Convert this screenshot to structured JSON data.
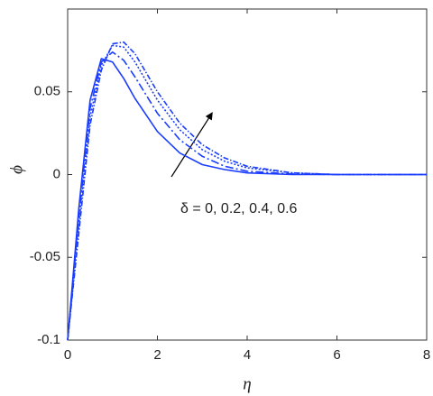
{
  "chart_data": {
    "type": "line",
    "x_label": "η",
    "y_label": "ϕ",
    "annotation": "δ = 0, 0.2, 0.4, 0.6",
    "x": [
      0,
      0.25,
      0.5,
      0.75,
      1,
      1.25,
      1.5,
      2,
      2.5,
      3,
      3.5,
      4,
      5,
      6,
      7,
      8
    ],
    "series": [
      {
        "color": "#1a3dff",
        "values": [
          -0.1,
          -0.02,
          0.045,
          0.07,
          0.068,
          0.058,
          0.046,
          0.026,
          0.013,
          0.006,
          0.003,
          0.001,
          0,
          0,
          0,
          0
        ]
      },
      {
        "color": "#1a3dff",
        "values": [
          -0.1,
          -0.025,
          0.04,
          0.068,
          0.074,
          0.069,
          0.059,
          0.037,
          0.021,
          0.011,
          0.005,
          0.002,
          0.0003,
          0,
          0,
          0
        ]
      },
      {
        "color": "#1a3dff",
        "values": [
          -0.1,
          -0.03,
          0.035,
          0.066,
          0.078,
          0.077,
          0.068,
          0.045,
          0.027,
          0.015,
          0.008,
          0.004,
          0.001,
          0,
          0,
          0
        ]
      },
      {
        "color": "#1a3dff",
        "values": [
          -0.1,
          -0.035,
          0.03,
          0.063,
          0.079,
          0.08,
          0.073,
          0.05,
          0.031,
          0.018,
          0.01,
          0.005,
          0.001,
          0,
          0,
          0
        ]
      }
    ],
    "xlim": [
      0,
      8
    ],
    "ylim": [
      -0.1,
      0.1
    ],
    "xticks": [
      0,
      2,
      4,
      6,
      8
    ],
    "yticks": [
      -0.1,
      -0.05,
      0,
      0.05
    ],
    "grid": false
  }
}
